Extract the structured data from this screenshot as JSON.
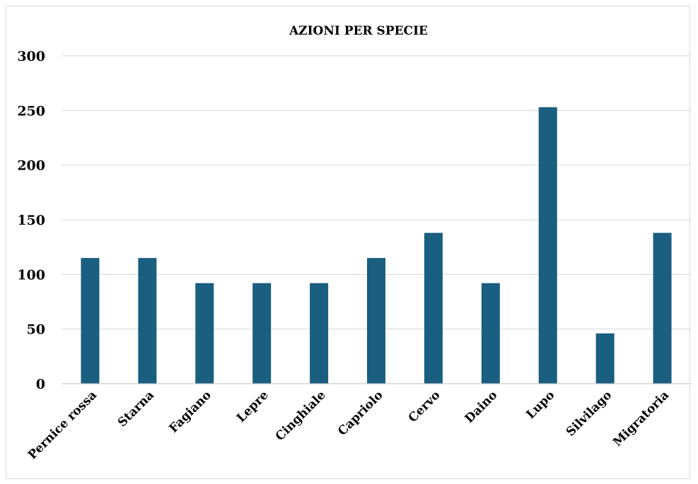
{
  "chart_data": {
    "type": "bar",
    "title": "AZIONI PER SPECIE",
    "categories": [
      "Pernice rossa",
      "Starna",
      "Fagiano",
      "Lepre",
      "Cinghiale",
      "Capriolo",
      "Cervo",
      "Daino",
      "Lupo",
      "Silvilago",
      "Migratoria"
    ],
    "values": [
      115,
      115,
      92,
      92,
      92,
      115,
      138,
      92,
      253,
      46,
      138
    ],
    "ylim": [
      0,
      300
    ],
    "yticks": [
      0,
      50,
      100,
      150,
      200,
      250,
      300
    ],
    "xlabel": "",
    "ylabel": "",
    "grid": true,
    "legend": "none",
    "bar_color": "#1a5e80"
  }
}
